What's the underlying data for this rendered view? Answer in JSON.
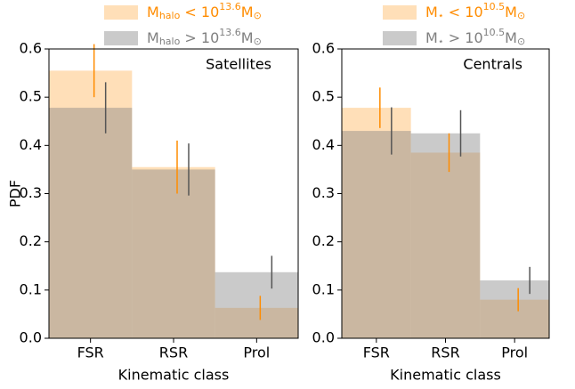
{
  "chart_data": [
    {
      "type": "step",
      "annotation": "Satellites",
      "xlabel": "Kinematic class",
      "ylabel": "PDF",
      "categories": [
        "FSR",
        "RSR",
        "Prol"
      ],
      "ylim": [
        0,
        0.6
      ],
      "yticks": [
        {
          "value": 0,
          "label": "0.0"
        },
        0.1,
        0.2,
        0.3,
        0.4,
        0.5,
        0.6
      ],
      "legend": "above",
      "series": [
        {
          "name": [
            {
              "text": "M"
            },
            {
              "text": "halo",
              "shift": "sub"
            },
            {
              "text": " < 10"
            },
            {
              "text": "13.6",
              "shift": "super"
            },
            {
              "text": "M"
            },
            {
              "text": "⊙",
              "shift": "sub"
            }
          ],
          "color": "#ff8c00",
          "values": [
            0.555,
            0.355,
            0.063
          ],
          "errors": [
            0.055,
            0.055,
            0.025
          ]
        },
        {
          "name": [
            {
              "text": "M"
            },
            {
              "text": "halo",
              "shift": "sub"
            },
            {
              "text": " > 10"
            },
            {
              "text": "13.6",
              "shift": "super"
            },
            {
              "text": "M"
            },
            {
              "text": "⊙",
              "shift": "sub"
            }
          ],
          "color": "#808080",
          "values": [
            0.478,
            0.35,
            0.137
          ],
          "errors": [
            0.053,
            0.054,
            0.034
          ]
        }
      ]
    },
    {
      "type": "step",
      "annotation": "Centrals",
      "xlabel": "Kinematic class",
      "categories": [
        "FSR",
        "RSR",
        "Prol"
      ],
      "ylim": [
        0,
        0.6
      ],
      "yticks": [
        {
          "value": 0,
          "label": "0.0"
        },
        0.1,
        0.2,
        0.3,
        0.4,
        0.5,
        0.6
      ],
      "legend": "above",
      "series": [
        {
          "name": [
            {
              "text": "M"
            },
            {
              "text": "⋆",
              "shift": "sub"
            },
            {
              "text": " < 10"
            },
            {
              "text": "10.5",
              "shift": "super"
            },
            {
              "text": "M"
            },
            {
              "text": "⊙",
              "shift": "sub"
            }
          ],
          "color": "#ff8c00",
          "values": [
            0.478,
            0.385,
            0.08
          ],
          "errors": [
            0.042,
            0.04,
            0.024
          ]
        },
        {
          "name": [
            {
              "text": "M"
            },
            {
              "text": "⋆",
              "shift": "sub"
            },
            {
              "text": " > 10"
            },
            {
              "text": "10.5",
              "shift": "super"
            },
            {
              "text": "M"
            },
            {
              "text": "⊙",
              "shift": "sub"
            }
          ],
          "color": "#808080",
          "values": [
            0.43,
            0.425,
            0.12
          ],
          "errors": [
            0.049,
            0.048,
            0.028
          ]
        }
      ]
    }
  ]
}
